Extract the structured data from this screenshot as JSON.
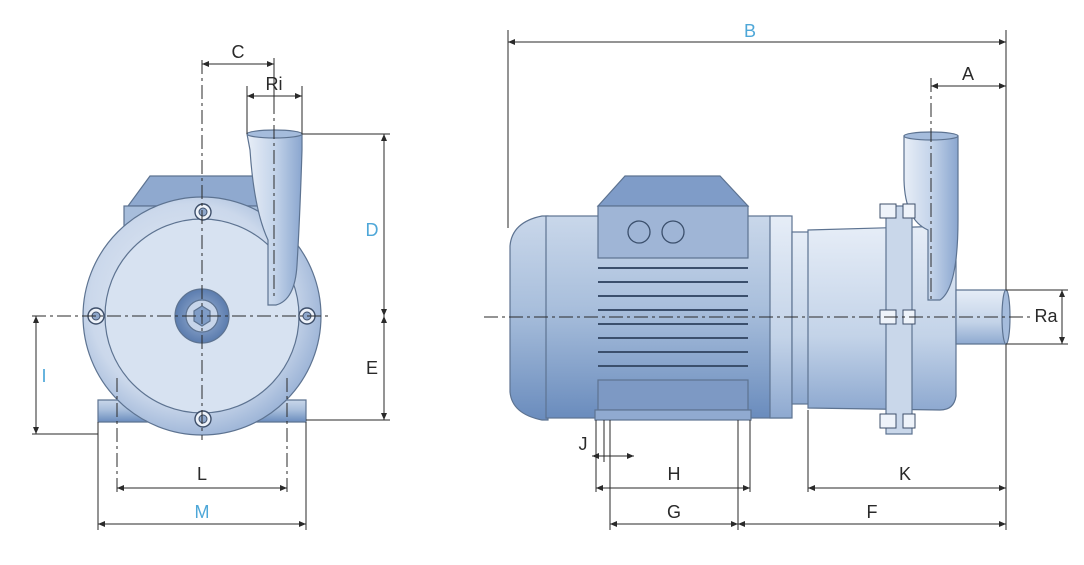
{
  "colors": {
    "dimension_black": "#2a2a2a",
    "dimension_blue": "#4ea7d8",
    "pump_dark_blue": "#5c7fb0",
    "pump_light_blue": "#dfe8f4"
  },
  "labels": {
    "A": "A",
    "B": "B",
    "C": "C",
    "D": "D",
    "E": "E",
    "F": "F",
    "G": "G",
    "H": "H",
    "I": "I",
    "J": "J",
    "K": "K",
    "L": "L",
    "M": "M",
    "Ri": "Ri",
    "Ra": "Ra"
  }
}
